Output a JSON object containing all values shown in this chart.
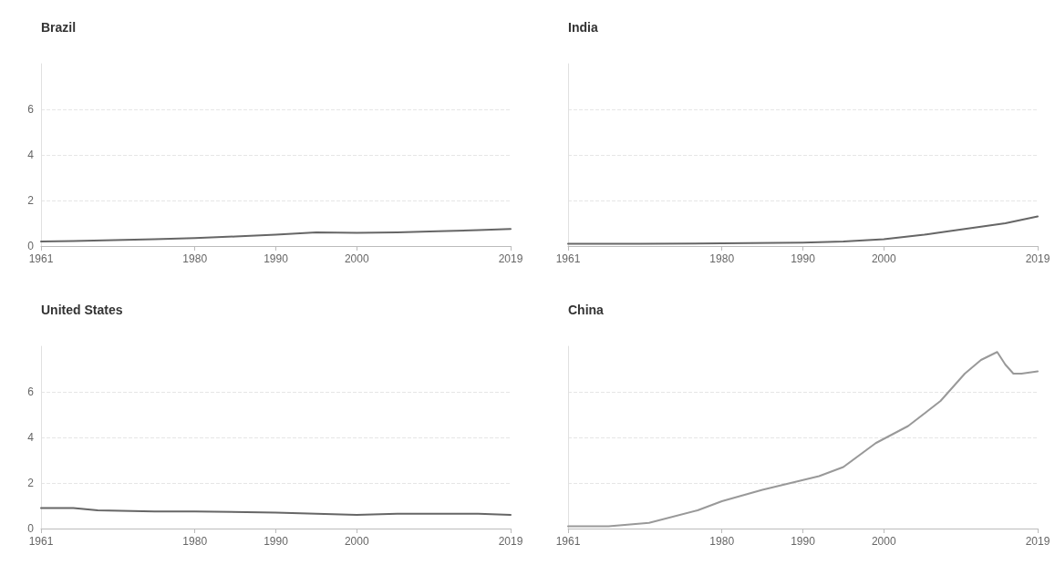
{
  "chart_data": [
    {
      "type": "line",
      "title": "Brazil",
      "x": [
        1961,
        1965,
        1970,
        1975,
        1980,
        1985,
        1990,
        1995,
        2000,
        2005,
        2010,
        2015,
        2019
      ],
      "series": [
        {
          "color": "#666666",
          "values": [
            0.2,
            0.22,
            0.26,
            0.3,
            0.35,
            0.42,
            0.5,
            0.6,
            0.58,
            0.6,
            0.65,
            0.7,
            0.75
          ]
        }
      ],
      "xlim": [
        1961,
        2019
      ],
      "xticks": [
        1961,
        1980,
        1990,
        2000,
        2019
      ],
      "ylim": [
        0,
        8
      ],
      "yticks": [
        0,
        2,
        4,
        6
      ],
      "grid": "y",
      "line_style": "solid",
      "marker": "none"
    },
    {
      "type": "line",
      "title": "India",
      "x": [
        1961,
        1970,
        1980,
        1990,
        1995,
        2000,
        2005,
        2010,
        2015,
        2019
      ],
      "series": [
        {
          "color": "#666666",
          "values": [
            0.1,
            0.1,
            0.12,
            0.15,
            0.2,
            0.3,
            0.5,
            0.75,
            1.0,
            1.3
          ]
        }
      ],
      "xlim": [
        1961,
        2019
      ],
      "xticks": [
        1961,
        1980,
        1990,
        2000,
        2019
      ],
      "ylim": [
        0,
        8
      ],
      "yticks": [
        0,
        2,
        4,
        6
      ],
      "grid": "y",
      "tick_labels": "x",
      "line_style": "solid",
      "marker": "none"
    },
    {
      "type": "line",
      "title": "United States",
      "x": [
        1961,
        1965,
        1968,
        1975,
        1980,
        1990,
        1995,
        2000,
        2005,
        2010,
        2015,
        2019
      ],
      "series": [
        {
          "color": "#666666",
          "values": [
            0.9,
            0.9,
            0.8,
            0.75,
            0.75,
            0.7,
            0.65,
            0.6,
            0.65,
            0.65,
            0.65,
            0.6
          ]
        }
      ],
      "xlim": [
        1961,
        2019
      ],
      "xticks": [
        1961,
        1980,
        1990,
        2000,
        2019
      ],
      "ylim": [
        0,
        8
      ],
      "yticks": [
        0,
        2,
        4,
        6
      ],
      "grid": "y",
      "line_style": "solid",
      "marker": "none"
    },
    {
      "type": "line",
      "title": "China",
      "x": [
        1961,
        1966,
        1971,
        1977,
        1980,
        1985,
        1992,
        1995,
        1999,
        2003,
        2007,
        2010,
        2012,
        2014,
        2015,
        2016,
        2017,
        2019
      ],
      "series": [
        {
          "color": "#999999",
          "values": [
            0.1,
            0.1,
            0.25,
            0.8,
            1.2,
            1.7,
            2.3,
            2.7,
            3.75,
            4.5,
            5.6,
            6.8,
            7.4,
            7.75,
            7.2,
            6.8,
            6.8,
            6.9
          ]
        }
      ],
      "xlim": [
        1961,
        2019
      ],
      "xticks": [
        1961,
        1980,
        1990,
        2000,
        2019
      ],
      "ylim": [
        0,
        8
      ],
      "yticks": [
        0,
        2,
        4,
        6
      ],
      "grid": "y",
      "tick_labels": "x",
      "line_style": "solid",
      "marker": "none"
    }
  ]
}
